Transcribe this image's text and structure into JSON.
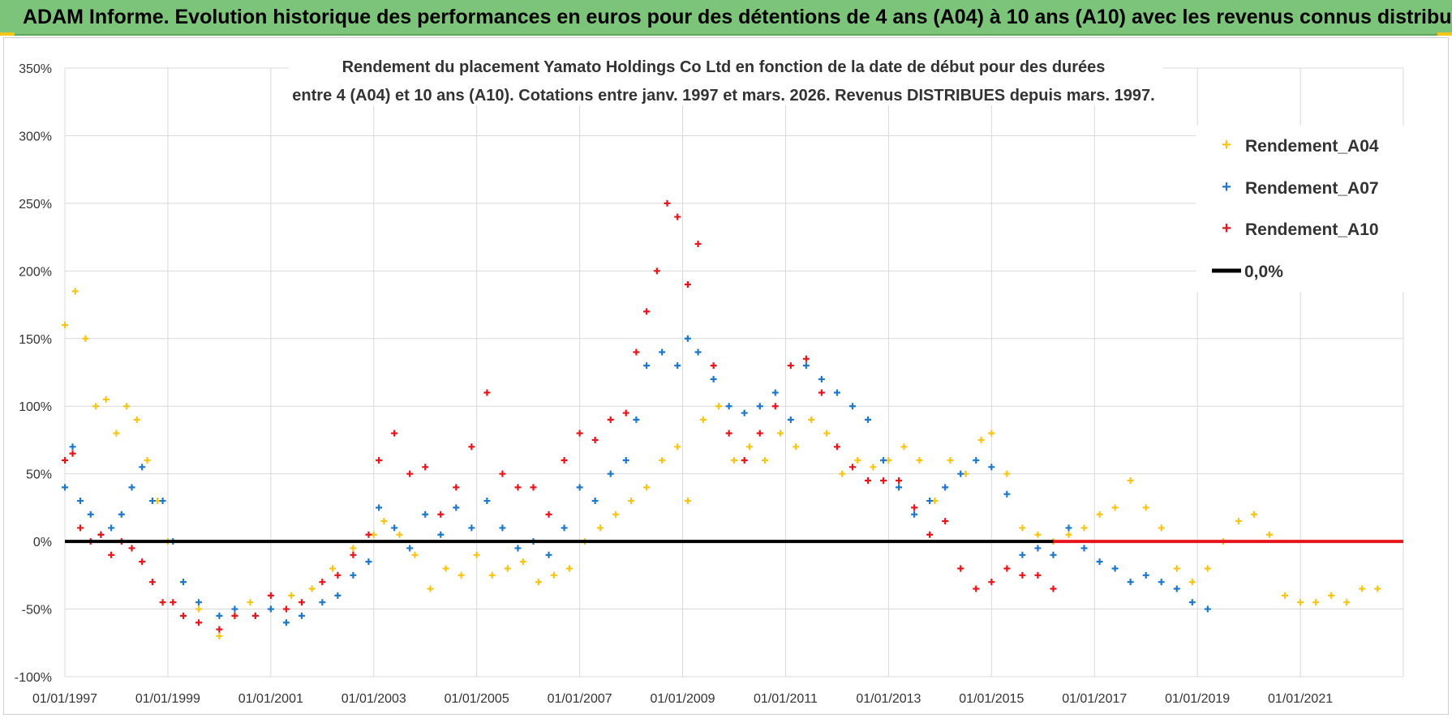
{
  "header": {
    "title": "ADAM Informe. Evolution historique des performances en euros pour des détentions de 4 ans (A04) à 10 ans (A10) avec les revenus connus distribués"
  },
  "colors": {
    "header_bg": "#7cc47a",
    "a04": "#f5c518",
    "a07": "#1f77c8",
    "a10": "#e8141c",
    "zero": "#000000",
    "grid": "#d9d9d9"
  },
  "chart_data": {
    "type": "scatter",
    "title_lines": [
      "Rendement du placement Yamato Holdings Co Ltd en fonction de la date de début pour des durées",
      "entre 4 (A04) et 10 ans (A10).  Cotations entre janv. 1997 et mars. 2026. Revenus DISTRIBUES depuis mars. 1997."
    ],
    "x_ticks": [
      "01/01/1997",
      "01/01/1999",
      "01/01/2001",
      "01/01/2003",
      "01/01/2005",
      "01/01/2007",
      "01/01/2009",
      "01/01/2011",
      "01/01/2013",
      "01/01/2015",
      "01/01/2017",
      "01/01/2019",
      "01/01/2021"
    ],
    "xlim": [
      1997.0,
      2023.0
    ],
    "y_ticks": [
      "350%",
      "300%",
      "250%",
      "200%",
      "150%",
      "100%",
      "50%",
      "0%",
      "-50%",
      "-100%"
    ],
    "ylim": [
      -100,
      350
    ],
    "legend": [
      "Rendement_A04",
      "Rendement_A07",
      "Rendement_A10",
      "0,0%"
    ],
    "series": [
      {
        "name": "Rendement_A04",
        "x": [
          1997.0,
          1997.2,
          1997.4,
          1997.6,
          1997.8,
          1998.0,
          1998.2,
          1998.4,
          1998.6,
          1998.8,
          1999.0,
          1999.3,
          1999.6,
          2000.0,
          2000.3,
          2000.6,
          2001.0,
          2001.4,
          2001.8,
          2002.2,
          2002.6,
          2003.0,
          2003.2,
          2003.5,
          2003.8,
          2004.1,
          2004.4,
          2004.7,
          2005.0,
          2005.3,
          2005.6,
          2005.9,
          2006.2,
          2006.5,
          2006.8,
          2007.1,
          2007.4,
          2007.7,
          2008.0,
          2008.3,
          2008.6,
          2008.9,
          2009.1,
          2009.4,
          2009.7,
          2010.0,
          2010.3,
          2010.6,
          2010.9,
          2011.2,
          2011.5,
          2011.8,
          2012.1,
          2012.4,
          2012.7,
          2013.0,
          2013.3,
          2013.6,
          2013.9,
          2014.2,
          2014.5,
          2014.8,
          2015.0,
          2015.3,
          2015.6,
          2015.9,
          2016.2,
          2016.5,
          2016.8,
          2017.1,
          2017.4,
          2017.7,
          2018.0,
          2018.3,
          2018.6,
          2018.9,
          2019.2,
          2019.5,
          2019.8,
          2020.1,
          2020.4,
          2020.7,
          2021.0,
          2021.3,
          2021.6,
          2021.9,
          2022.2,
          2022.5
        ],
        "values": [
          160,
          185,
          150,
          100,
          105,
          80,
          100,
          90,
          60,
          30,
          0,
          -30,
          -50,
          -70,
          -55,
          -45,
          -50,
          -40,
          -35,
          -20,
          -5,
          5,
          15,
          5,
          -10,
          -35,
          -20,
          -25,
          -10,
          -25,
          -20,
          -15,
          -30,
          -25,
          -20,
          0,
          10,
          20,
          30,
          40,
          60,
          70,
          30,
          90,
          100,
          60,
          70,
          60,
          80,
          70,
          90,
          80,
          50,
          60,
          55,
          60,
          70,
          60,
          30,
          60,
          50,
          75,
          80,
          50,
          10,
          5,
          0,
          5,
          10,
          20,
          25,
          45,
          25,
          10,
          -20,
          -30,
          -20,
          0,
          15,
          20,
          5,
          -40,
          -45,
          -45,
          -40,
          -45,
          -35,
          -35
        ]
      },
      {
        "name": "Rendement_A07",
        "x": [
          1997.0,
          1997.15,
          1997.3,
          1997.5,
          1997.7,
          1997.9,
          1998.1,
          1998.3,
          1998.5,
          1998.7,
          1998.9,
          1999.1,
          1999.3,
          1999.6,
          2000.0,
          2000.3,
          2000.7,
          2001.0,
          2001.3,
          2001.6,
          2002.0,
          2002.3,
          2002.6,
          2002.9,
          2003.1,
          2003.4,
          2003.7,
          2004.0,
          2004.3,
          2004.6,
          2004.9,
          2005.2,
          2005.5,
          2005.8,
          2006.1,
          2006.4,
          2006.7,
          2007.0,
          2007.3,
          2007.6,
          2007.9,
          2008.1,
          2008.3,
          2008.6,
          2008.9,
          2009.1,
          2009.3,
          2009.6,
          2009.9,
          2010.2,
          2010.5,
          2010.8,
          2011.1,
          2011.4,
          2011.7,
          2012.0,
          2012.3,
          2012.6,
          2012.9,
          2013.2,
          2013.5,
          2013.8,
          2014.1,
          2014.4,
          2014.7,
          2015.0,
          2015.3,
          2015.6,
          2015.9,
          2016.2,
          2016.5,
          2016.8,
          2017.1,
          2017.4,
          2017.7,
          2018.0,
          2018.3,
          2018.6,
          2018.9,
          2019.2
        ],
        "values": [
          40,
          70,
          30,
          20,
          5,
          10,
          20,
          40,
          55,
          30,
          30,
          0,
          -30,
          -45,
          -55,
          -50,
          -55,
          -50,
          -60,
          -55,
          -45,
          -40,
          -25,
          -15,
          25,
          10,
          -5,
          20,
          5,
          25,
          10,
          30,
          10,
          -5,
          0,
          -10,
          10,
          40,
          30,
          50,
          60,
          90,
          130,
          140,
          130,
          150,
          140,
          120,
          100,
          95,
          100,
          110,
          90,
          130,
          120,
          110,
          100,
          90,
          60,
          40,
          20,
          30,
          40,
          50,
          60,
          55,
          35,
          -10,
          -5,
          -10,
          10,
          -5,
          -15,
          -20,
          -30,
          -25,
          -30,
          -35,
          -45,
          -50
        ]
      },
      {
        "name": "Rendement_A10",
        "x": [
          1997.0,
          1997.15,
          1997.3,
          1997.5,
          1997.7,
          1997.9,
          1998.1,
          1998.3,
          1998.5,
          1998.7,
          1998.9,
          1999.1,
          1999.3,
          1999.6,
          2000.0,
          2000.3,
          2000.7,
          2001.0,
          2001.3,
          2001.6,
          2002.0,
          2002.3,
          2002.6,
          2002.9,
          2003.1,
          2003.4,
          2003.7,
          2004.0,
          2004.3,
          2004.6,
          2004.9,
          2005.2,
          2005.5,
          2005.8,
          2006.1,
          2006.4,
          2006.7,
          2007.0,
          2007.3,
          2007.6,
          2007.9,
          2008.1,
          2008.3,
          2008.5,
          2008.7,
          2008.9,
          2009.1,
          2009.3,
          2009.6,
          2009.9,
          2010.2,
          2010.5,
          2010.8,
          2011.1,
          2011.4,
          2011.7,
          2012.0,
          2012.3,
          2012.6,
          2012.9,
          2013.2,
          2013.5,
          2013.8,
          2014.1,
          2014.4,
          2014.7,
          2015.0,
          2015.3,
          2015.6,
          2015.9,
          2016.2
        ],
        "values": [
          60,
          65,
          10,
          0,
          5,
          -10,
          0,
          -5,
          -15,
          -30,
          -45,
          -45,
          -55,
          -60,
          -65,
          -55,
          -55,
          -40,
          -50,
          -45,
          -30,
          -25,
          -10,
          5,
          60,
          80,
          50,
          55,
          20,
          40,
          70,
          110,
          50,
          40,
          40,
          20,
          60,
          80,
          75,
          90,
          95,
          140,
          170,
          200,
          250,
          240,
          190,
          220,
          130,
          80,
          60,
          80,
          100,
          130,
          135,
          110,
          70,
          55,
          45,
          45,
          45,
          25,
          5,
          15,
          -20,
          -35,
          -30,
          -20,
          -25,
          -25,
          -35
        ]
      }
    ],
    "zero_segments": [
      {
        "from": 1997.0,
        "to": 2016.2,
        "color": "black"
      },
      {
        "from": 2016.2,
        "to": 2023.0,
        "color": "red"
      }
    ]
  }
}
